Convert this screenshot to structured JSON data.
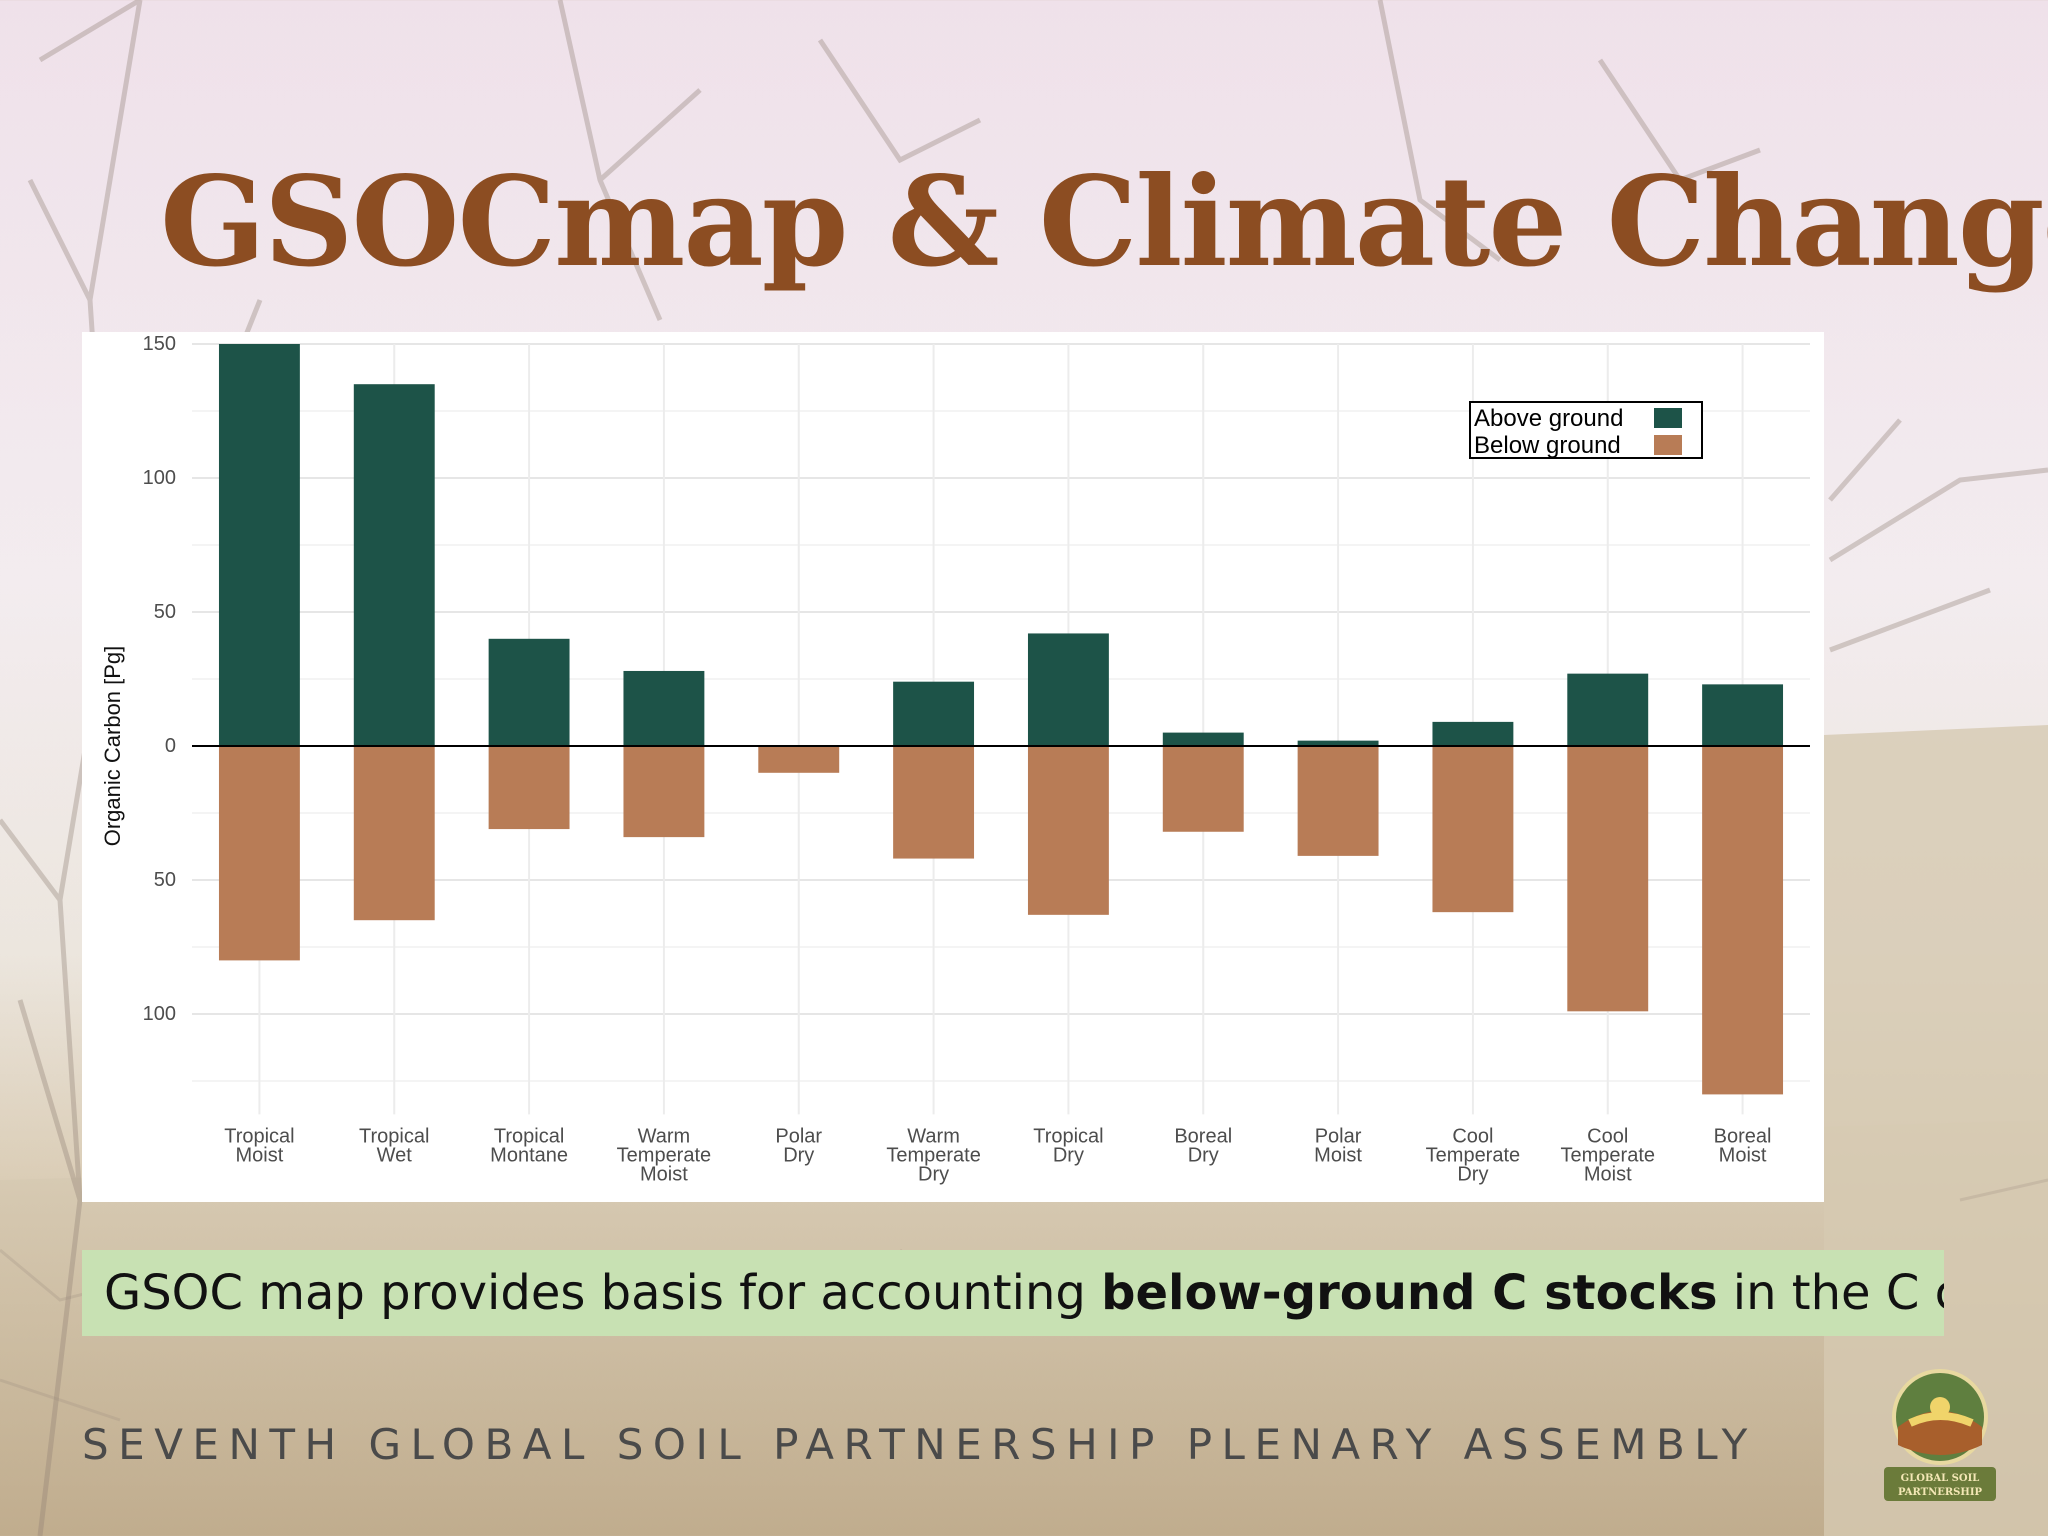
{
  "slide": {
    "title": "GSOCmap & Climate Change",
    "caption": {
      "before": "GSOC map provides basis for accounting ",
      "bold": "below-ground C stocks",
      "after": " in the C cycle"
    },
    "footer": "SEVENTH GLOBAL SOIL PARTNERSHIP PLENARY ASSEMBLY",
    "logo_text": [
      "GLOBAL SOIL",
      "PARTNERSHIP"
    ]
  },
  "chart_data": {
    "type": "bar",
    "stacked": "diverging",
    "ylabel": "Organic Carbon [Pg]",
    "ylim": [
      -130,
      150
    ],
    "yticks": [
      150,
      100,
      50,
      0,
      -50,
      -100
    ],
    "ytick_labels": [
      "150",
      "100",
      "50",
      "0",
      "50",
      "100"
    ],
    "grid": true,
    "legend_position": "top-right",
    "categories": [
      [
        "Tropical",
        "Moist"
      ],
      [
        "Tropical",
        "Wet"
      ],
      [
        "Tropical",
        "Montane"
      ],
      [
        "Warm",
        "Temperate",
        "Moist"
      ],
      [
        "Polar",
        "Dry"
      ],
      [
        "Warm",
        "Temperate",
        "Dry"
      ],
      [
        "Tropical",
        "Dry"
      ],
      [
        "Boreal",
        "Dry"
      ],
      [
        "Polar",
        "Moist"
      ],
      [
        "Cool",
        "Temperate",
        "Dry"
      ],
      [
        "Cool",
        "Temperate",
        "Moist"
      ],
      [
        "Boreal",
        "Moist"
      ]
    ],
    "series": [
      {
        "name": "Above ground",
        "color": "#1d5348",
        "values": [
          150,
          135,
          40,
          28,
          0,
          24,
          42,
          5,
          2,
          9,
          27,
          23
        ]
      },
      {
        "name": "Below ground",
        "color": "#b87c56",
        "values": [
          -80,
          -65,
          -31,
          -34,
          -10,
          -42,
          -63,
          -32,
          -41,
          -62,
          -99,
          -130
        ]
      }
    ]
  }
}
